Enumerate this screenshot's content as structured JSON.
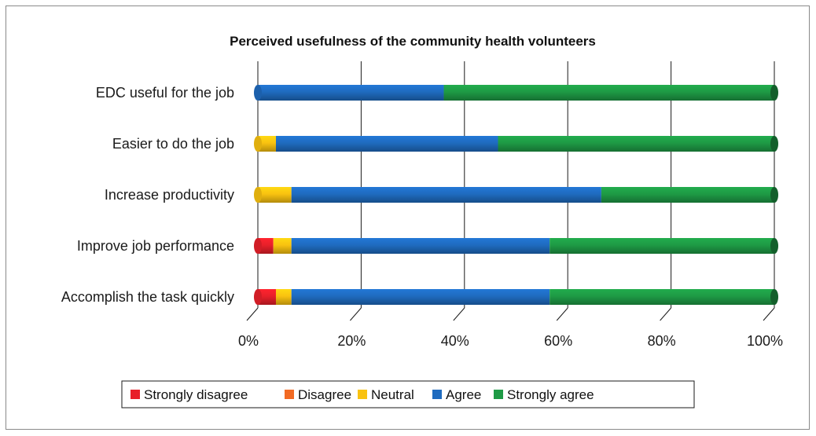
{
  "chart_data": {
    "type": "bar",
    "orientation": "horizontal",
    "stacked": "percent",
    "title": "Perceived usefulness of the community health volunteers",
    "xlabel": "",
    "ylabel": "",
    "xlim": [
      0,
      100
    ],
    "x_ticks": [
      "0%",
      "20%",
      "40%",
      "60%",
      "80%",
      "100%"
    ],
    "grid": true,
    "legend_position": "bottom",
    "categories": [
      "EDC useful for the job",
      "Easier to do the job",
      "Increase productivity",
      "Improve job performance",
      "Accomplish the task quickly"
    ],
    "series": [
      {
        "name": "Strongly disagree",
        "color": "#e8202a",
        "values": [
          0,
          0,
          0,
          3,
          3.5
        ]
      },
      {
        "name": "Disagree",
        "color": "#f26a23",
        "values": [
          0,
          0,
          0,
          0,
          0
        ]
      },
      {
        "name": "Neutral",
        "color": "#f9c210",
        "values": [
          0,
          3.5,
          6.5,
          3.5,
          3
        ]
      },
      {
        "name": "Agree",
        "color": "#1f6bbf",
        "values": [
          36,
          43,
          60,
          50,
          50
        ]
      },
      {
        "name": "Strongly agree",
        "color": "#1e9a45",
        "values": [
          64,
          53.5,
          33.5,
          43.5,
          43.5
        ]
      }
    ]
  }
}
